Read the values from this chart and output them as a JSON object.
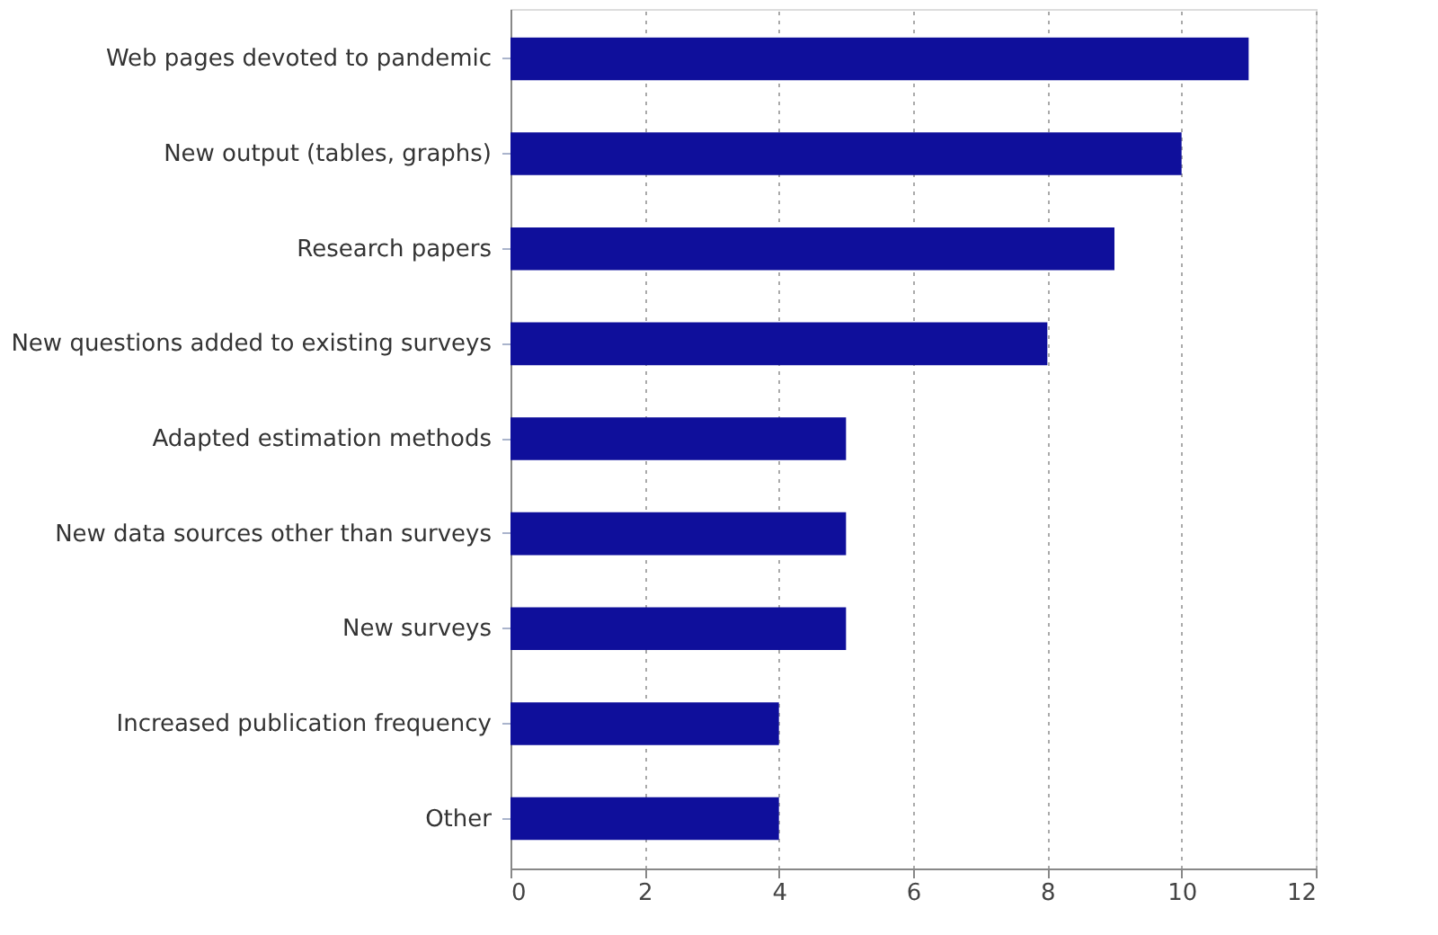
{
  "chart_data": {
    "type": "bar",
    "orientation": "horizontal",
    "categories": [
      "Web pages devoted to pandemic",
      "New output (tables, graphs)",
      "Research papers",
      "New questions added to existing surveys",
      "Adapted estimation methods",
      "New data sources other than surveys",
      "New surveys",
      "Increased publication frequency",
      "Other"
    ],
    "values": [
      11,
      10,
      9,
      8,
      5,
      5,
      5,
      4,
      4
    ],
    "color": "#0f0f9b",
    "xlim": [
      0,
      12
    ],
    "xticks": [
      0,
      2,
      4,
      6,
      8,
      10,
      12
    ],
    "grid": "x"
  }
}
